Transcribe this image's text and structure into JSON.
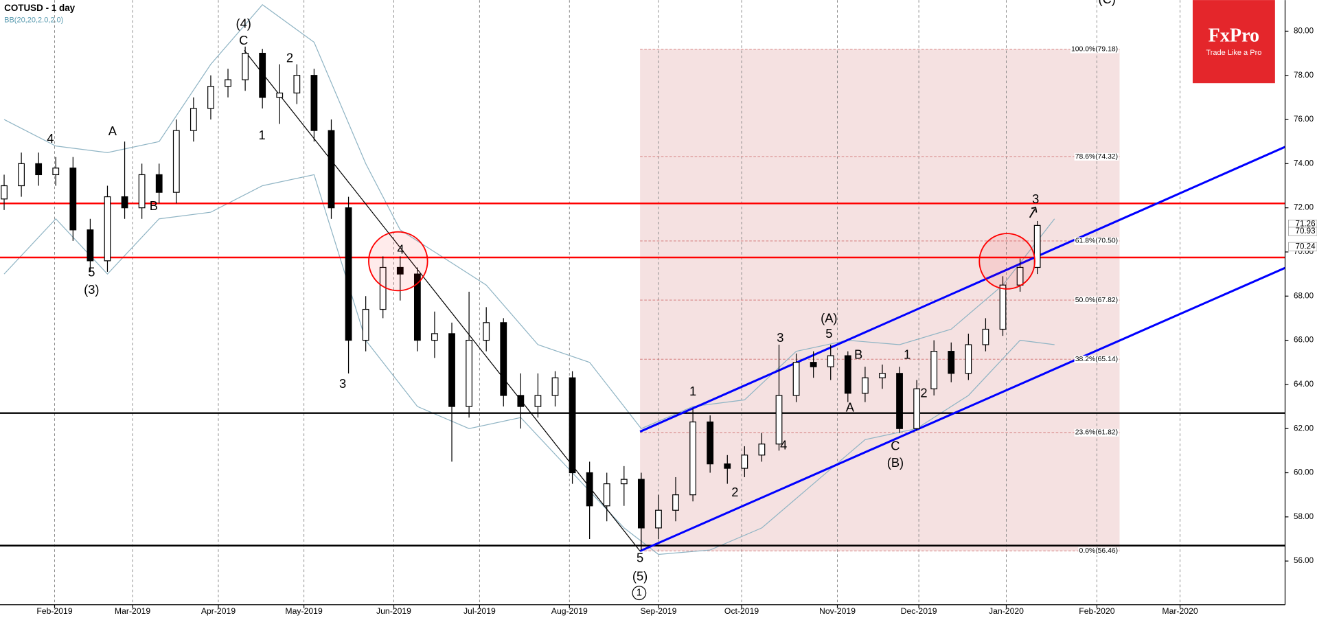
{
  "header": {
    "symbol": "COTUSD - 1 day",
    "indicator": "BB(20,20,2.0,2.0)"
  },
  "logo": {
    "brand": "FxPro",
    "tagline": "Trade Like a Pro"
  },
  "chart_data": {
    "type": "candlestick",
    "categories": [
      null,
      null,
      null,
      null,
      null,
      null,
      null,
      null,
      null,
      null,
      null,
      null,
      null,
      null,
      null,
      null,
      null,
      null,
      null,
      null,
      null,
      null,
      null,
      null,
      null,
      null,
      null,
      null,
      null,
      null,
      null,
      null,
      null,
      null,
      null,
      null,
      null,
      null,
      null,
      null,
      null,
      null,
      null,
      null,
      null,
      null,
      null,
      null,
      null,
      null,
      null,
      null,
      null,
      null,
      null,
      null,
      null,
      null,
      null,
      null,
      null
    ],
    "open": [
      72.4,
      73.0,
      74.0,
      73.5,
      73.8,
      71.0,
      69.6,
      72.5,
      72.0,
      73.5,
      72.7,
      75.5,
      76.5,
      77.5,
      77.8,
      79.0,
      77.0,
      77.2,
      78.0,
      75.5,
      72.0,
      66.0,
      67.4,
      69.3,
      69.0,
      66.0,
      66.3,
      63.0,
      66.0,
      66.8,
      63.5,
      63.0,
      63.5,
      64.3,
      60.0,
      58.5,
      59.5,
      59.7,
      57.5,
      58.3,
      59.0,
      62.3,
      60.4,
      60.2,
      60.8,
      61.3,
      63.5,
      65.0,
      64.8,
      65.3,
      63.6,
      64.3,
      64.5,
      62.0,
      63.8,
      65.5,
      64.5,
      65.8,
      66.5,
      68.5,
      69.3
    ],
    "high": [
      73.5,
      74.5,
      74.5,
      74.3,
      74.3,
      71.5,
      73.0,
      75.0,
      74.0,
      74.0,
      76.0,
      77.0,
      78.0,
      78.3,
      79.3,
      79.2,
      78.5,
      78.5,
      78.3,
      76.0,
      72.5,
      68.0,
      69.8,
      69.8,
      69.3,
      67.3,
      66.8,
      68.2,
      67.5,
      67.0,
      64.5,
      64.5,
      64.6,
      64.6,
      60.5,
      60.0,
      60.3,
      60.0,
      59.0,
      59.8,
      62.9,
      62.6,
      60.8,
      61.2,
      61.8,
      65.8,
      65.4,
      65.5,
      65.8,
      65.5,
      64.8,
      64.9,
      64.8,
      64.2,
      66.0,
      65.9,
      66.3,
      67.0,
      68.9,
      69.7,
      71.4
    ],
    "low": [
      71.9,
      72.5,
      73.0,
      73.0,
      70.5,
      69.1,
      69.1,
      71.5,
      71.5,
      72.2,
      72.2,
      75.0,
      76.0,
      77.0,
      77.3,
      76.5,
      75.8,
      76.7,
      75.0,
      71.5,
      64.5,
      65.5,
      67.0,
      67.8,
      65.5,
      65.2,
      60.5,
      62.5,
      65.5,
      63.0,
      62.0,
      62.5,
      63.0,
      59.5,
      57.0,
      57.8,
      58.5,
      56.5,
      57.0,
      57.8,
      58.7,
      60.0,
      59.5,
      59.8,
      60.5,
      61.0,
      63.2,
      64.3,
      64.2,
      63.2,
      63.2,
      63.8,
      61.8,
      61.9,
      63.5,
      64.1,
      64.2,
      65.5,
      66.2,
      68.2,
      69.0
    ],
    "close": [
      73.0,
      74.0,
      73.5,
      73.8,
      71.0,
      69.6,
      72.5,
      72.0,
      73.5,
      72.7,
      75.5,
      76.5,
      77.5,
      77.8,
      79.0,
      77.0,
      77.2,
      78.0,
      75.5,
      72.0,
      66.0,
      67.4,
      69.3,
      69.0,
      66.0,
      66.3,
      63.0,
      66.0,
      66.8,
      63.5,
      63.0,
      63.5,
      64.3,
      60.0,
      58.5,
      59.5,
      59.7,
      57.5,
      58.3,
      59.0,
      62.3,
      60.4,
      60.2,
      60.8,
      61.3,
      63.5,
      65.0,
      64.8,
      65.3,
      63.6,
      64.3,
      64.5,
      62.0,
      63.8,
      65.5,
      64.5,
      65.8,
      66.5,
      68.5,
      69.3,
      71.2
    ],
    "bands": {
      "color": "#8fb4c4",
      "upper_x": [
        0,
        3,
        6,
        9,
        12,
        15,
        18,
        21,
        23,
        26,
        28,
        31,
        34,
        37,
        40,
        43,
        46,
        49,
        52,
        55,
        58,
        61
      ],
      "upper": [
        76.0,
        74.8,
        74.5,
        75.0,
        78.5,
        81.2,
        79.5,
        74.0,
        71.0,
        69.5,
        68.5,
        65.8,
        65.0,
        62.0,
        63.0,
        63.3,
        65.5,
        66.0,
        65.8,
        66.5,
        68.5,
        71.5
      ],
      "lower_x": [
        0,
        3,
        6,
        9,
        12,
        15,
        18,
        21,
        24,
        27,
        30,
        33,
        36,
        38,
        41,
        44,
        47,
        50,
        53,
        56,
        59,
        61
      ],
      "lower": [
        69.0,
        71.5,
        69.0,
        71.5,
        71.8,
        73.0,
        73.5,
        66.0,
        63.0,
        62.0,
        62.5,
        60.0,
        57.5,
        56.3,
        56.5,
        57.5,
        59.5,
        61.5,
        62.0,
        63.5,
        66.0,
        65.8
      ]
    },
    "xlim": [
      -0.24,
      74.39
    ],
    "ylim": [
      54.02,
      81.41
    ],
    "xticks": [
      {
        "value": 2.93,
        "label": "Feb-2019"
      },
      {
        "value": 7.46,
        "label": "Mar-2019"
      },
      {
        "value": 12.44,
        "label": "Apr-2019"
      },
      {
        "value": 17.41,
        "label": "May-2019"
      },
      {
        "value": 22.63,
        "label": "Jun-2019"
      },
      {
        "value": 27.61,
        "label": "Jul-2019"
      },
      {
        "value": 32.83,
        "label": "Aug-2019"
      },
      {
        "value": 38.0,
        "label": "Sep-2019"
      },
      {
        "value": 42.83,
        "label": "Oct-2019"
      },
      {
        "value": 48.39,
        "label": "Nov-2019"
      },
      {
        "value": 53.12,
        "label": "Dec-2019"
      },
      {
        "value": 58.2,
        "label": "Jan-2020"
      },
      {
        "value": 63.46,
        "label": "Feb-2020"
      },
      {
        "value": 68.29,
        "label": "Mar-2020"
      }
    ],
    "yticks": [
      {
        "value": 56,
        "label": "56.00"
      },
      {
        "value": 58,
        "label": "58.00"
      },
      {
        "value": 60,
        "label": "60.00"
      },
      {
        "value": 62,
        "label": "62.00"
      },
      {
        "value": 64,
        "label": "64.00"
      },
      {
        "value": 66,
        "label": "66.00"
      },
      {
        "value": 68,
        "label": "68.00"
      },
      {
        "value": 70,
        "label": "70.00"
      },
      {
        "value": 72,
        "label": "72.00"
      },
      {
        "value": 74,
        "label": "74.00"
      },
      {
        "value": 76,
        "label": "76.00"
      },
      {
        "value": 78,
        "label": "78.00"
      },
      {
        "value": 80,
        "label": "80.00"
      }
    ],
    "grid": true,
    "levels": [
      {
        "value": 72.2,
        "color": "#ff0000"
      },
      {
        "value": 69.75,
        "color": "#ff0000"
      },
      {
        "value": 62.7,
        "color": "#000000"
      },
      {
        "value": 56.7,
        "color": "#000000"
      }
    ],
    "trend_lines": [
      {
        "color": "#0000ff",
        "x": [
          36.93,
          74.39
        ],
        "values": [
          61.86,
          74.76
        ]
      },
      {
        "color": "#0000ff",
        "x": [
          36.93,
          74.39
        ],
        "values": [
          56.45,
          69.28
        ]
      },
      {
        "color": "#000000",
        "x": [
          13.95,
          36.93
        ],
        "values": [
          79.13,
          56.45
        ]
      }
    ],
    "fib": {
      "x": [
        36.93,
        64.78
      ],
      "color": "#f5e1e1",
      "levels": [
        {
          "value": 79.18,
          "label": "100.0%(79.18)"
        },
        {
          "value": 74.32,
          "label": "78.6%(74.32)"
        },
        {
          "value": 70.5,
          "label": "61.8%(70.50)"
        },
        {
          "value": 67.82,
          "label": "50.0%(67.82)"
        },
        {
          "value": 65.14,
          "label": "38.2%(65.14)"
        },
        {
          "value": 61.82,
          "label": "23.6%(61.82)"
        },
        {
          "value": 56.46,
          "label": "0.0%(56.46)"
        }
      ]
    },
    "price_tags": [
      71.26,
      70.93,
      70.24
    ],
    "wave_labels": [
      "(4)",
      "C",
      "2",
      "4",
      "A",
      "B",
      "5",
      "(3)",
      "1",
      "3",
      "4",
      "5",
      "(5)",
      "1",
      "1",
      "2",
      "3",
      "4",
      "(A)",
      "5",
      "B",
      "A",
      "1",
      "2",
      "C",
      "(B)",
      "3",
      "(C)"
    ]
  }
}
